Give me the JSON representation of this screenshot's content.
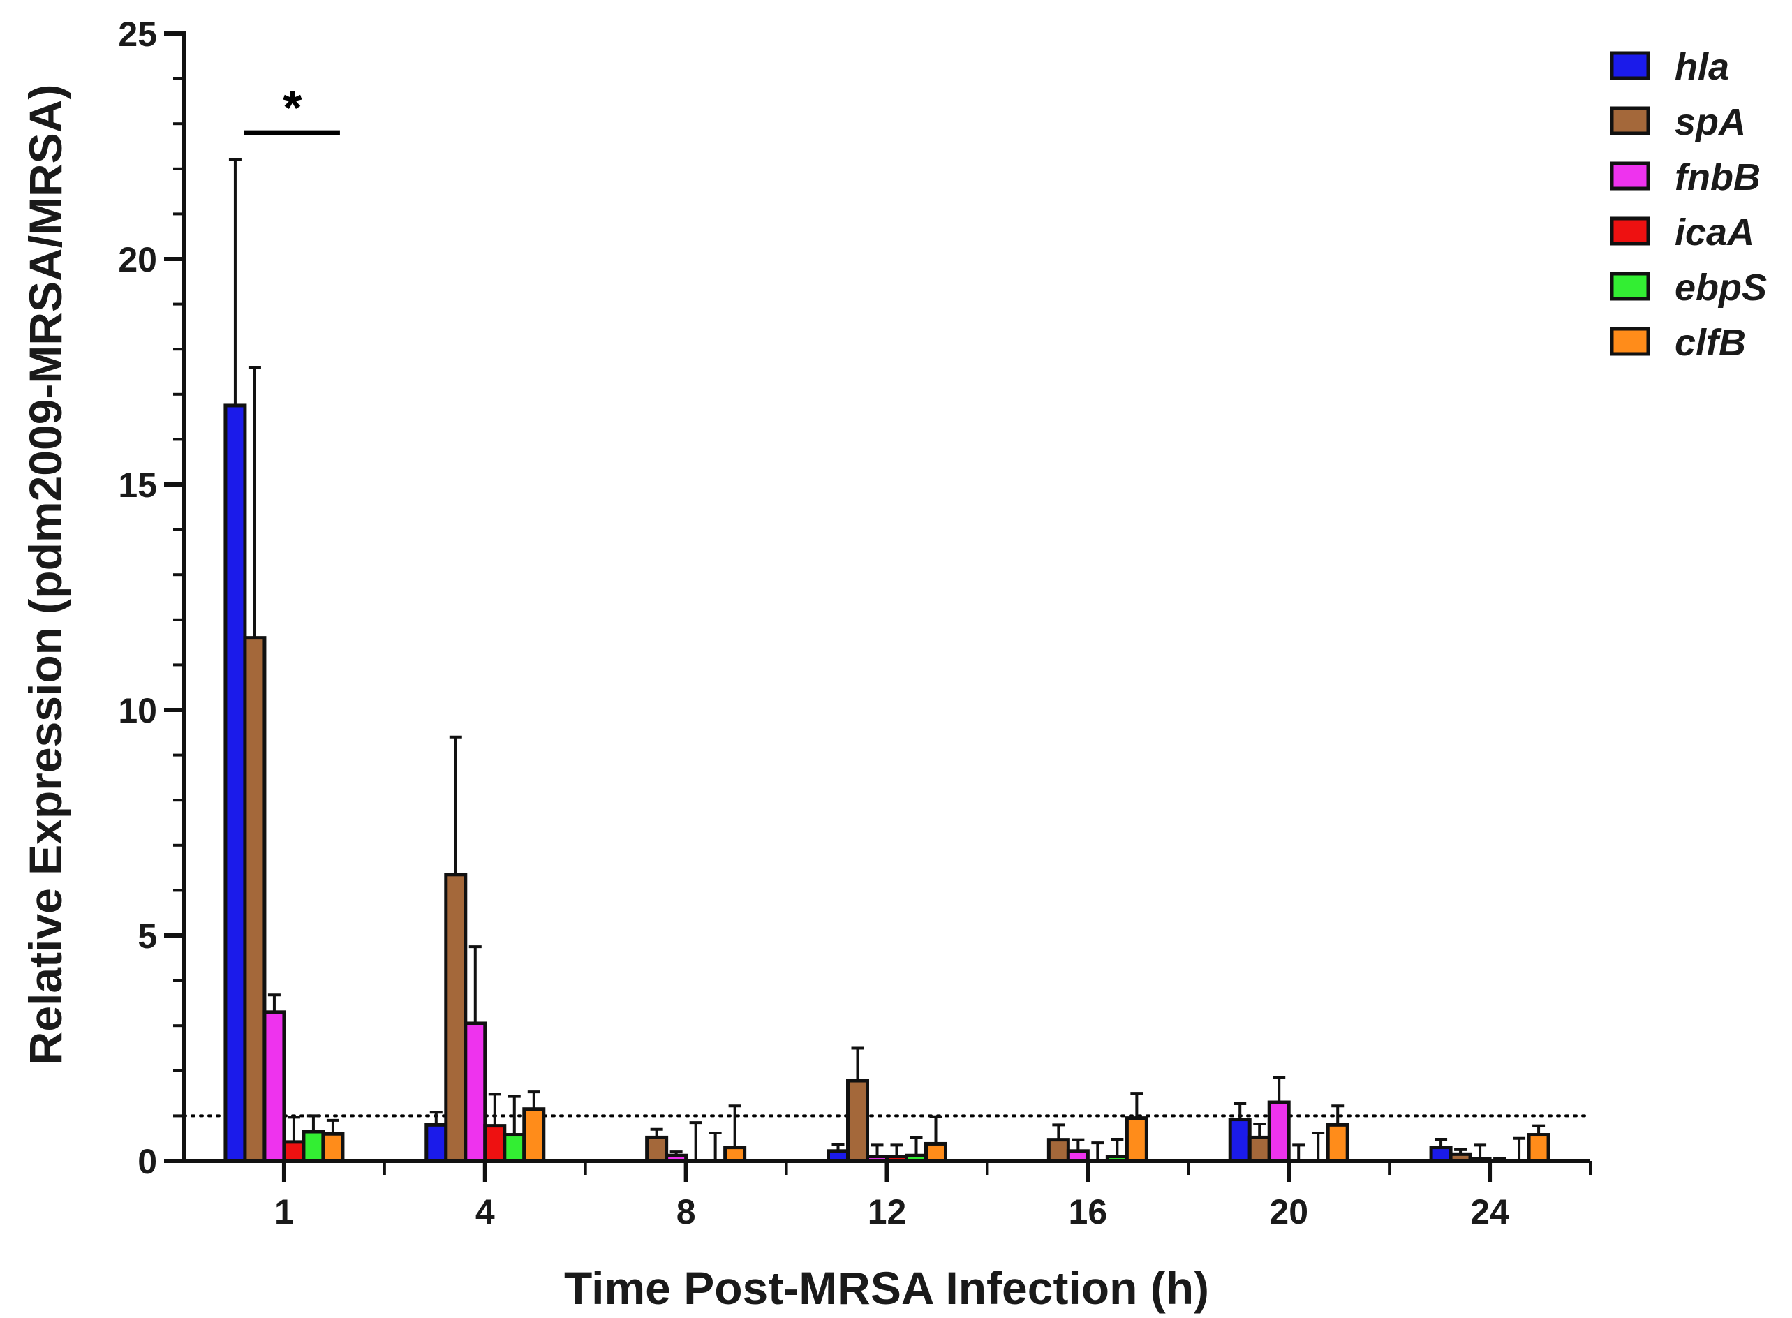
{
  "chart_data": {
    "type": "bar",
    "title": "",
    "xlabel": "Time Post-MRSA Infection (h)",
    "ylabel": "Relative Expression (pdm2009-MRSA/MRSA)",
    "ylim": [
      0,
      25
    ],
    "yticks": [
      "0",
      "5",
      "10",
      "15",
      "20",
      "25"
    ],
    "categories": [
      "1",
      "4",
      "8",
      "12",
      "16",
      "20",
      "24"
    ],
    "reference_line": 1,
    "legend_position": "top-right",
    "series": [
      {
        "name": "hla",
        "color": "#1b1bea",
        "values": [
          16.75,
          0.8,
          0.0,
          0.22,
          0.0,
          0.92,
          0.3
        ],
        "errors": [
          5.45,
          0.28,
          0.0,
          0.14,
          0.0,
          0.35,
          0.18
        ]
      },
      {
        "name": "spA",
        "color": "#a4683a",
        "values": [
          11.6,
          6.35,
          0.52,
          1.78,
          0.47,
          0.52,
          0.15
        ],
        "errors": [
          6.0,
          3.05,
          0.18,
          0.72,
          0.33,
          0.3,
          0.1
        ]
      },
      {
        "name": "fnbB",
        "color": "#ee33ee",
        "values": [
          3.3,
          3.05,
          0.12,
          0.1,
          0.22,
          1.3,
          0.05
        ],
        "errors": [
          0.38,
          1.7,
          0.08,
          0.25,
          0.25,
          0.55,
          0.3
        ]
      },
      {
        "name": "icaA",
        "color": "#ee1111",
        "values": [
          0.42,
          0.78,
          0.0,
          0.1,
          0.0,
          0.0,
          0.0
        ],
        "errors": [
          0.55,
          0.7,
          0.85,
          0.25,
          0.4,
          0.35,
          0.05
        ]
      },
      {
        "name": "ebpS",
        "color": "#33ee33",
        "values": [
          0.65,
          0.58,
          0.0,
          0.12,
          0.1,
          0.0,
          0.0
        ],
        "errors": [
          0.35,
          0.85,
          0.62,
          0.4,
          0.38,
          0.62,
          0.5
        ]
      },
      {
        "name": "clfB",
        "color": "#ff8c1a",
        "values": [
          0.6,
          1.15,
          0.3,
          0.38,
          0.95,
          0.8,
          0.58
        ],
        "errors": [
          0.3,
          0.38,
          0.92,
          0.6,
          0.55,
          0.42,
          0.2
        ]
      }
    ],
    "annotations": [
      {
        "text": "*",
        "from_category": "1",
        "bracket_value": 22.8
      }
    ]
  }
}
